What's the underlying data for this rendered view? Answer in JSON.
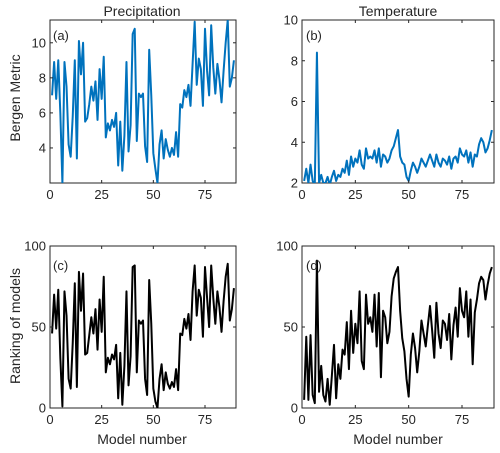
{
  "chart_data": [
    {
      "panel_label": "(a)",
      "type": "line",
      "title": "Precipitation",
      "xlabel": "",
      "ylabel": "Bergen Metric",
      "xlim": [
        0,
        90
      ],
      "ylim": [
        2,
        11.3
      ],
      "xticks": [
        0,
        25,
        50,
        75
      ],
      "yticks": [
        4,
        6,
        8,
        10
      ],
      "color": "#0072bd",
      "series": [
        {
          "x": [
            1,
            2,
            3,
            4,
            5,
            6,
            7,
            8,
            9,
            10,
            11,
            12,
            13,
            14,
            15,
            16,
            17,
            18,
            19,
            20,
            21,
            22,
            23,
            24,
            25,
            26,
            27,
            28,
            29,
            30,
            31,
            32,
            33,
            34,
            35,
            36,
            37,
            38,
            39,
            40,
            41,
            42,
            43,
            44,
            45,
            46,
            47,
            48,
            49,
            50,
            51,
            52,
            53,
            54,
            55,
            56,
            57,
            58,
            59,
            60,
            61,
            62,
            63,
            64,
            65,
            66,
            67,
            68,
            69,
            70,
            71,
            72,
            73,
            74,
            75,
            76,
            77,
            78,
            79,
            80,
            81,
            82,
            83,
            84,
            85,
            86,
            87,
            88,
            89
          ],
          "y": [
            7.0,
            8.9,
            6.8,
            9.0,
            6.0,
            2.0,
            8.9,
            7.5,
            4.2,
            3.5,
            5.8,
            9.0,
            3.4,
            10.1,
            8.2,
            10.0,
            5.5,
            5.7,
            6.5,
            7.5,
            6.7,
            7.8,
            5.6,
            8.5,
            6.8,
            9.2,
            4.6,
            5.4,
            5.0,
            5.6,
            5.2,
            6.0,
            3.0,
            5.5,
            2.7,
            4.7,
            8.9,
            3.8,
            5.3,
            10.5,
            10.8,
            4.4,
            7.1,
            6.9,
            7.1,
            4.1,
            3.2,
            9.6,
            7.0,
            3.7,
            2.8,
            2.0,
            4.2,
            5.0,
            3.4,
            4.5,
            3.9,
            3.5,
            4.0,
            3.6,
            4.9,
            3.5,
            6.5,
            6.3,
            7.3,
            6.9,
            7.6,
            6.4,
            8.8,
            11.2,
            7.6,
            9.1,
            8.5,
            6.4,
            10.8,
            8.4,
            7.0,
            11.0,
            8.6,
            7.1,
            8.8,
            7.9,
            6.6,
            8.4,
            10.0,
            11.3,
            7.5,
            8.0,
            9.0
          ]
        }
      ]
    },
    {
      "panel_label": "(b)",
      "type": "line",
      "title": "Temperature",
      "xlabel": "",
      "ylabel": "",
      "xlim": [
        0,
        90
      ],
      "ylim": [
        2,
        10
      ],
      "xticks": [
        0,
        25,
        50,
        75
      ],
      "yticks": [
        2,
        4,
        6,
        8,
        10
      ],
      "color": "#0072bd",
      "series": [
        {
          "x": [
            1,
            2,
            3,
            4,
            5,
            6,
            7,
            8,
            9,
            10,
            11,
            12,
            13,
            14,
            15,
            16,
            17,
            18,
            19,
            20,
            21,
            22,
            23,
            24,
            25,
            26,
            27,
            28,
            29,
            30,
            31,
            32,
            33,
            34,
            35,
            36,
            37,
            38,
            39,
            40,
            41,
            42,
            43,
            44,
            45,
            46,
            47,
            48,
            49,
            50,
            51,
            52,
            53,
            54,
            55,
            56,
            57,
            58,
            59,
            60,
            61,
            62,
            63,
            64,
            65,
            66,
            67,
            68,
            69,
            70,
            71,
            72,
            73,
            74,
            75,
            76,
            77,
            78,
            79,
            80,
            81,
            82,
            83,
            84,
            85,
            86,
            87,
            88,
            89
          ],
          "y": [
            2.1,
            2.7,
            2.0,
            2.9,
            2.1,
            1.9,
            8.4,
            2.0,
            2.4,
            2.0,
            2.0,
            2.3,
            1.9,
            2.3,
            2.6,
            2.1,
            2.4,
            2.3,
            2.7,
            2.5,
            3.1,
            2.4,
            3.3,
            2.8,
            3.2,
            3.0,
            3.6,
            2.9,
            2.7,
            3.7,
            3.2,
            3.3,
            3.2,
            3.6,
            3.0,
            3.7,
            2.8,
            3.4,
            3.3,
            3.0,
            3.2,
            3.6,
            3.8,
            4.2,
            4.6,
            3.3,
            3.0,
            2.9,
            2.3,
            2.1,
            2.6,
            3.0,
            2.8,
            2.5,
            2.8,
            3.2,
            3.0,
            2.8,
            3.1,
            3.4,
            3.1,
            2.8,
            3.4,
            3.0,
            2.8,
            3.2,
            3.1,
            2.9,
            3.3,
            2.7,
            3.2,
            3.3,
            3.0,
            3.7,
            3.4,
            3.3,
            3.6,
            3.0,
            3.5,
            2.8,
            3.4,
            3.3,
            3.9,
            4.2,
            4.0,
            3.5,
            3.7,
            4.1,
            4.6
          ]
        }
      ]
    },
    {
      "panel_label": "(c)",
      "type": "line",
      "title": "",
      "xlabel": "Model number",
      "ylabel": "Ranking of models",
      "xlim": [
        0,
        90
      ],
      "ylim": [
        0,
        100
      ],
      "xticks": [
        0,
        25,
        50,
        75
      ],
      "yticks": [
        0,
        50,
        100
      ],
      "color": "#000000",
      "series": [
        {
          "x": [
            1,
            2,
            3,
            4,
            5,
            6,
            7,
            8,
            9,
            10,
            11,
            12,
            13,
            14,
            15,
            16,
            17,
            18,
            19,
            20,
            21,
            22,
            23,
            24,
            25,
            26,
            27,
            28,
            29,
            30,
            31,
            32,
            33,
            34,
            35,
            36,
            37,
            38,
            39,
            40,
            41,
            42,
            43,
            44,
            45,
            46,
            47,
            48,
            49,
            50,
            51,
            52,
            53,
            54,
            55,
            56,
            57,
            58,
            59,
            60,
            61,
            62,
            63,
            64,
            65,
            66,
            67,
            68,
            69,
            70,
            71,
            72,
            73,
            74,
            75,
            76,
            77,
            78,
            79,
            80,
            81,
            82,
            83,
            84,
            85,
            86,
            87,
            88,
            89
          ],
          "y": [
            46,
            70,
            49,
            73,
            31,
            1,
            72,
            57,
            18,
            12,
            40,
            77,
            13,
            84,
            60,
            83,
            33,
            34,
            45,
            56,
            46,
            61,
            36,
            67,
            47,
            81,
            22,
            31,
            27,
            33,
            30,
            39,
            6,
            34,
            2,
            26,
            72,
            14,
            32,
            87,
            88,
            22,
            54,
            52,
            54,
            18,
            8,
            79,
            52,
            12,
            4,
            0,
            18,
            27,
            11,
            22,
            15,
            12,
            16,
            13,
            24,
            11,
            46,
            45,
            55,
            49,
            58,
            42,
            72,
            88,
            57,
            73,
            68,
            44,
            87,
            68,
            50,
            88,
            68,
            52,
            72,
            62,
            47,
            66,
            81,
            89,
            54,
            61,
            74
          ]
        }
      ]
    },
    {
      "panel_label": "(d)",
      "type": "line",
      "title": "",
      "xlabel": "Model number",
      "ylabel": "",
      "xlim": [
        0,
        90
      ],
      "ylim": [
        0,
        100
      ],
      "xticks": [
        0,
        25,
        50,
        75
      ],
      "yticks": [
        0,
        50,
        100
      ],
      "color": "#000000",
      "series": [
        {
          "x": [
            1,
            2,
            3,
            4,
            5,
            6,
            7,
            8,
            9,
            10,
            11,
            12,
            13,
            14,
            15,
            16,
            17,
            18,
            19,
            20,
            21,
            22,
            23,
            24,
            25,
            26,
            27,
            28,
            29,
            30,
            31,
            32,
            33,
            34,
            35,
            36,
            37,
            38,
            39,
            40,
            41,
            42,
            43,
            44,
            45,
            46,
            47,
            48,
            49,
            50,
            51,
            52,
            53,
            54,
            55,
            56,
            57,
            58,
            59,
            60,
            61,
            62,
            63,
            64,
            65,
            66,
            67,
            68,
            69,
            70,
            71,
            72,
            73,
            74,
            75,
            76,
            77,
            78,
            79,
            80,
            81,
            82,
            83,
            84,
            85,
            86,
            87,
            88,
            89
          ],
          "y": [
            5,
            44,
            5,
            45,
            8,
            3,
            91,
            10,
            26,
            8,
            4,
            18,
            2,
            20,
            39,
            6,
            27,
            18,
            36,
            33,
            53,
            24,
            60,
            34,
            52,
            40,
            72,
            29,
            24,
            70,
            52,
            56,
            47,
            70,
            38,
            71,
            19,
            60,
            56,
            40,
            47,
            69,
            80,
            84,
            87,
            60,
            43,
            35,
            18,
            7,
            33,
            46,
            37,
            22,
            35,
            54,
            46,
            38,
            51,
            63,
            48,
            31,
            65,
            46,
            37,
            54,
            52,
            42,
            58,
            30,
            51,
            62,
            44,
            74,
            60,
            56,
            72,
            44,
            67,
            27,
            59,
            67,
            77,
            81,
            79,
            67,
            76,
            83,
            87
          ]
        }
      ]
    }
  ]
}
